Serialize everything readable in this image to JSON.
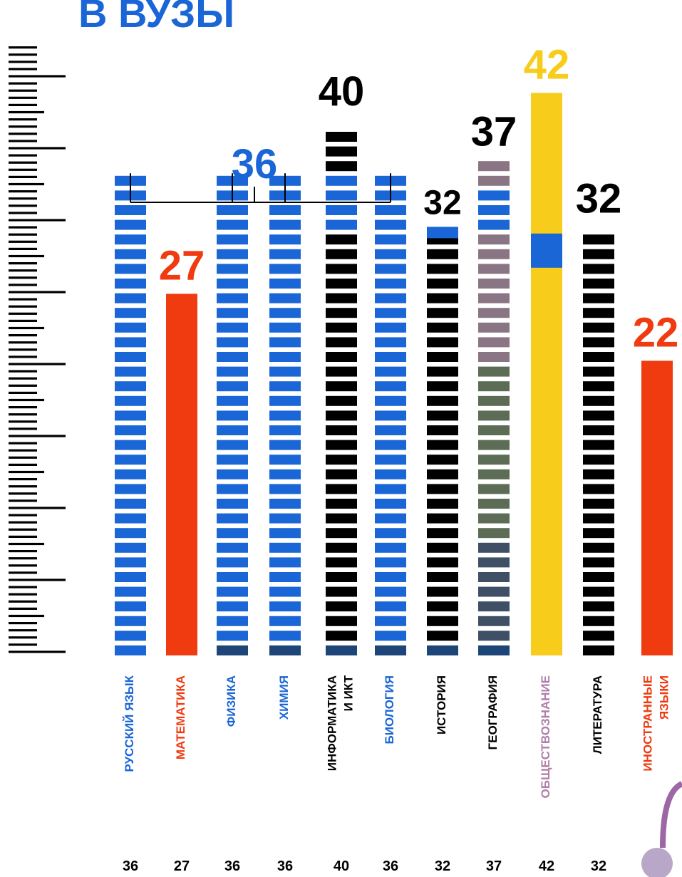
{
  "title": "В ВУЗЫ",
  "colors": {
    "blue": "#1a66d6",
    "red": "#f03a10",
    "black": "#000000",
    "yellow": "#f7cc1a",
    "navy": "#1e4577",
    "geo_top": "#8a7585",
    "geo_mid": "#5c6c55",
    "geo_bot": "#3f4f66",
    "social_label": "#b07fa8",
    "deco": "#9d67a6"
  },
  "chart_data": {
    "type": "bar",
    "title": "В ВУЗЫ",
    "ylim": [
      0,
      45
    ],
    "categories": [
      "РУССКИЙ ЯЗЫК",
      "МАТЕМАТИКА",
      "ФИЗИКА",
      "ХИМИЯ",
      "ИНФОРМАТИКА И ИКТ",
      "БИОЛОГИЯ",
      "ИСТОРИЯ",
      "ГЕОГРАФИЯ",
      "ОБЩЕСТВОЗНАНИЕ",
      "ЛИТЕРАТУРА",
      "ИНОСТРАННЫЕ ЯЗЫКИ"
    ],
    "label_lines": [
      [
        "РУССКИЙ ЯЗЫК"
      ],
      [
        "МАТЕМАТИКА"
      ],
      [
        "ФИЗИКА"
      ],
      [
        "ХИМИЯ"
      ],
      [
        "ИНФОРМАТИКА",
        "И ИКТ"
      ],
      [
        "БИОЛОГИЯ"
      ],
      [
        "ИСТОРИЯ"
      ],
      [
        "ГЕОГРАФИЯ"
      ],
      [
        "ОБЩЕСТВОЗНАНИЕ"
      ],
      [
        "ЛИТЕРАТУРА"
      ],
      [
        "ИНОСТРАННЫЕ",
        "ЯЗЫКИ"
      ]
    ],
    "values": [
      36,
      27,
      36,
      36,
      40,
      36,
      32,
      37,
      42,
      32,
      22
    ],
    "top_labels": [
      "27",
      "40",
      "32",
      "37",
      "42",
      "32",
      "22"
    ],
    "group_label": "36",
    "group_members": [
      "РУССКИЙ ЯЗЫК",
      "ФИЗИКА",
      "ХИМИЯ",
      "БИОЛОГИЯ"
    ],
    "bottom_values": [
      "36",
      "27",
      "36",
      "36",
      "40",
      "36",
      "32",
      "37",
      "42",
      "32",
      "22"
    ]
  }
}
